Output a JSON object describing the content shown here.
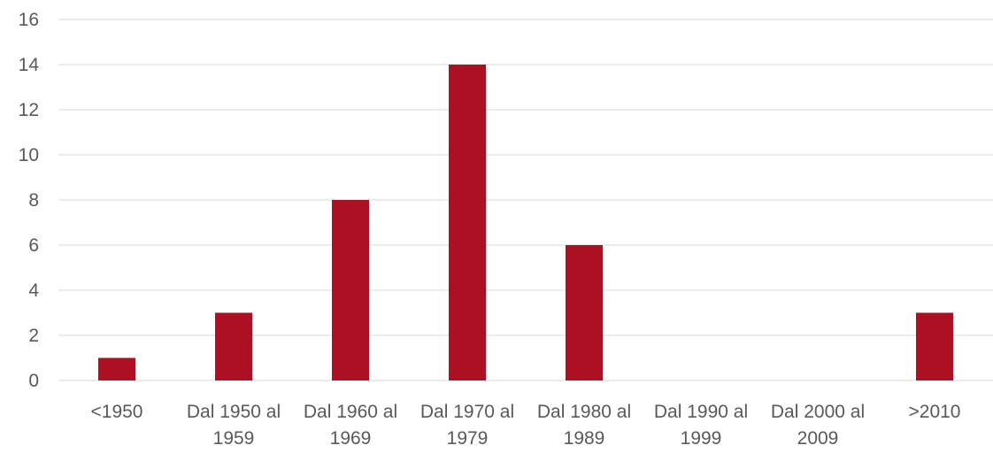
{
  "chart_data": {
    "type": "bar",
    "title": "",
    "xlabel": "",
    "ylabel": "",
    "categories": [
      [
        "<1950"
      ],
      [
        "Dal 1950 al",
        "1959"
      ],
      [
        "Dal 1960 al",
        "1969"
      ],
      [
        "Dal 1970 al",
        "1979"
      ],
      [
        "Dal 1980 al",
        "1989"
      ],
      [
        "Dal 1990 al",
        "1999"
      ],
      [
        "Dal 2000 al",
        "2009"
      ],
      [
        ">2010"
      ]
    ],
    "values": [
      1,
      3,
      8,
      14,
      6,
      0,
      0,
      3
    ],
    "ylim": [
      0,
      16
    ],
    "yticks": [
      0,
      2,
      4,
      6,
      8,
      10,
      12,
      14,
      16
    ],
    "grid": true,
    "legend": "none",
    "bar_color": "#AD1022"
  }
}
